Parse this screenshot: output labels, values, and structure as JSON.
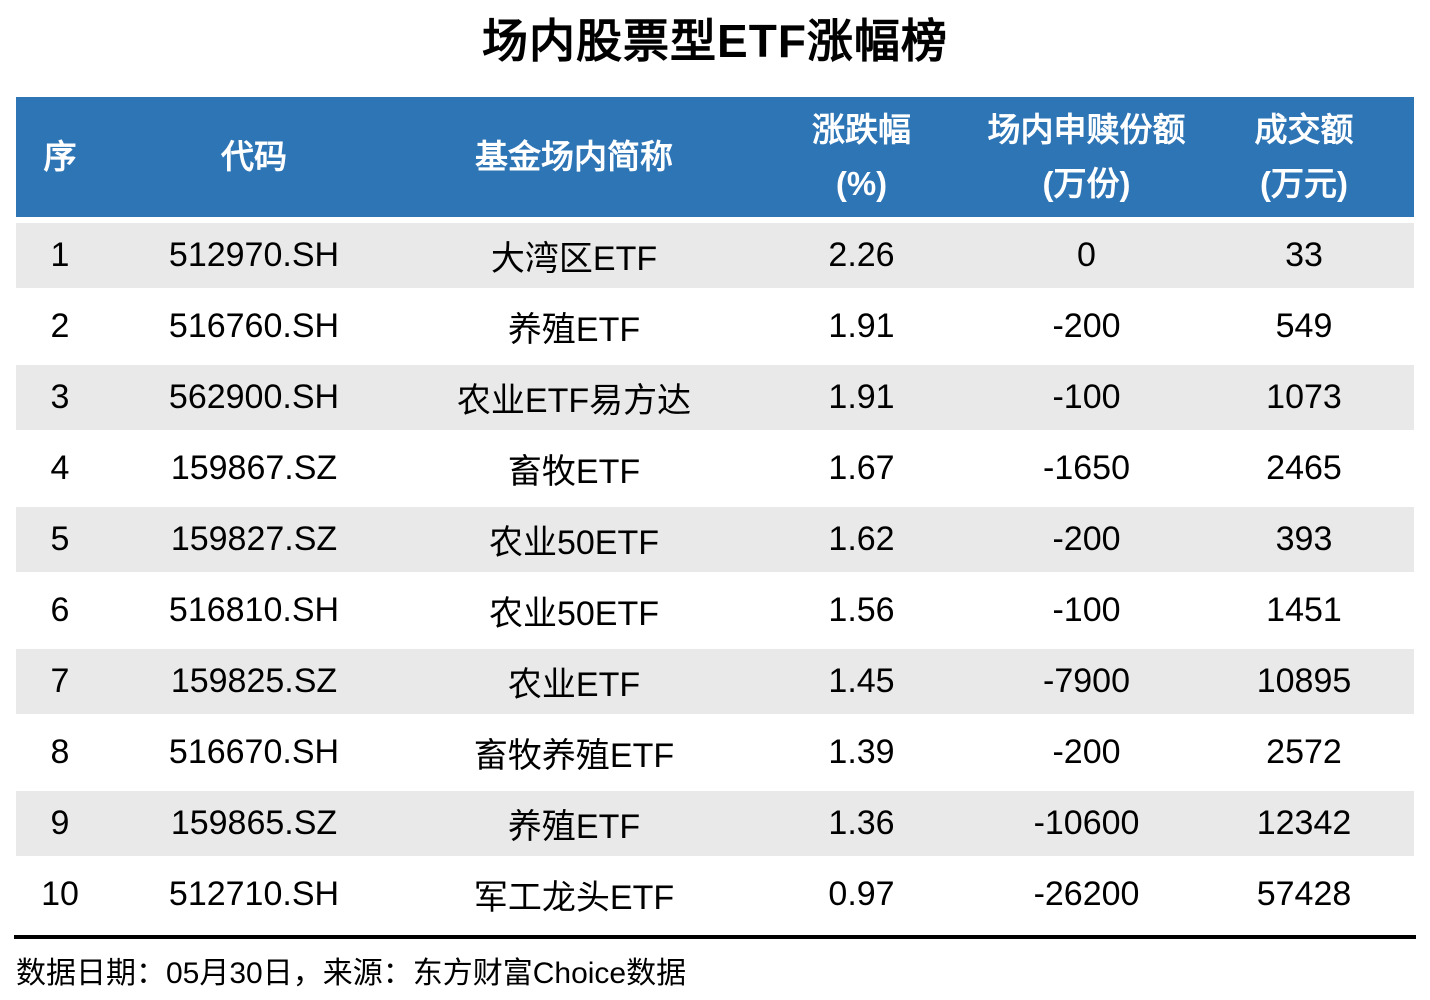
{
  "title": "场内股票型ETF涨幅榜",
  "colors": {
    "header_bg": "#2E75B6",
    "header_text": "#FFFFFF",
    "row_alt_bg": "#E9E9E9",
    "row_bg": "#FFFFFF",
    "body_text": "#000000",
    "rule": "#000000"
  },
  "table": {
    "headers": [
      {
        "label": "序",
        "unit": ""
      },
      {
        "label": "代码",
        "unit": ""
      },
      {
        "label": "基金场内简称",
        "unit": ""
      },
      {
        "label": "涨跌幅",
        "unit": "(%)"
      },
      {
        "label": "场内申赎份额",
        "unit": "(万份)"
      },
      {
        "label": "成交额",
        "unit": "(万元)"
      }
    ]
  },
  "chart_data": {
    "type": "table",
    "title": "场内股票型ETF涨幅榜",
    "columns": [
      "序",
      "代码",
      "基金场内简称",
      "涨跌幅(%)",
      "场内申赎份额(万份)",
      "成交额(万元)"
    ],
    "rows": [
      [
        "1",
        "512970.SH",
        "大湾区ETF",
        "2.26",
        "0",
        "33"
      ],
      [
        "2",
        "516760.SH",
        "养殖ETF",
        "1.91",
        "-200",
        "549"
      ],
      [
        "3",
        "562900.SH",
        "农业ETF易方达",
        "1.91",
        "-100",
        "1073"
      ],
      [
        "4",
        "159867.SZ",
        "畜牧ETF",
        "1.67",
        "-1650",
        "2465"
      ],
      [
        "5",
        "159827.SZ",
        "农业50ETF",
        "1.62",
        "-200",
        "393"
      ],
      [
        "6",
        "516810.SH",
        "农业50ETF",
        "1.56",
        "-100",
        "1451"
      ],
      [
        "7",
        "159825.SZ",
        "农业ETF",
        "1.45",
        "-7900",
        "10895"
      ],
      [
        "8",
        "516670.SH",
        "畜牧养殖ETF",
        "1.39",
        "-200",
        "2572"
      ],
      [
        "9",
        "159865.SZ",
        "养殖ETF",
        "1.36",
        "-10600",
        "12342"
      ],
      [
        "10",
        "512710.SH",
        "军工龙头ETF",
        "0.97",
        "-26200",
        "57428"
      ]
    ]
  },
  "footer": {
    "text": "数据日期：05月30日，来源：东方财富Choice数据"
  }
}
